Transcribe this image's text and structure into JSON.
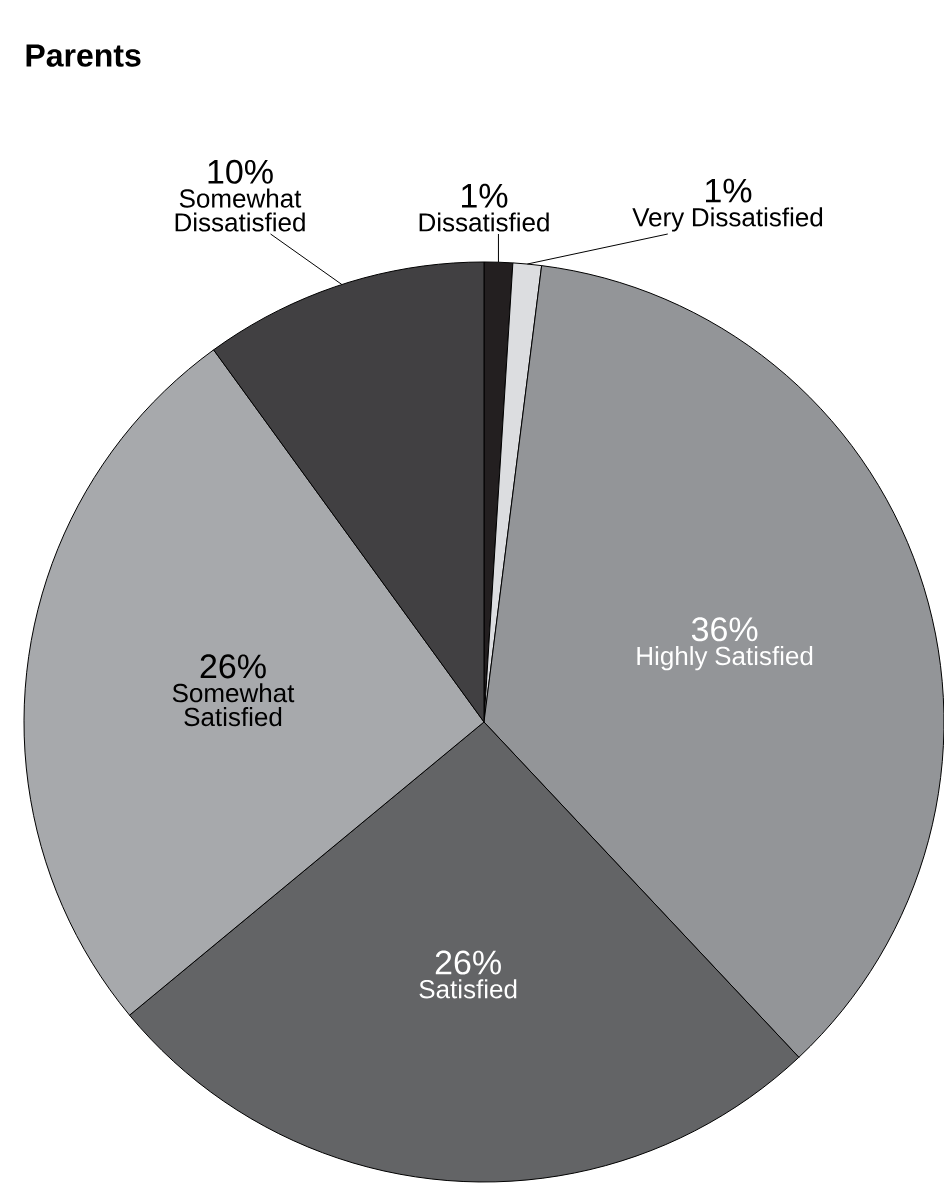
{
  "chart_data": {
    "type": "pie",
    "title": "Parents",
    "categories": [
      "Dissatisfied",
      "Very Dissatisfied",
      "Highly Satisfied",
      "Satisfied",
      "Somewhat Satisfied",
      "Somewhat Dissatisfied"
    ],
    "values": [
      1,
      1,
      36,
      26,
      26,
      10
    ],
    "colors": [
      "#231f20",
      "#dcdde0",
      "#939598",
      "#636466",
      "#a7a9ac",
      "#414042"
    ],
    "value_labels": [
      "1%",
      "1%",
      "36%",
      "26%",
      "26%",
      "10%"
    ]
  }
}
